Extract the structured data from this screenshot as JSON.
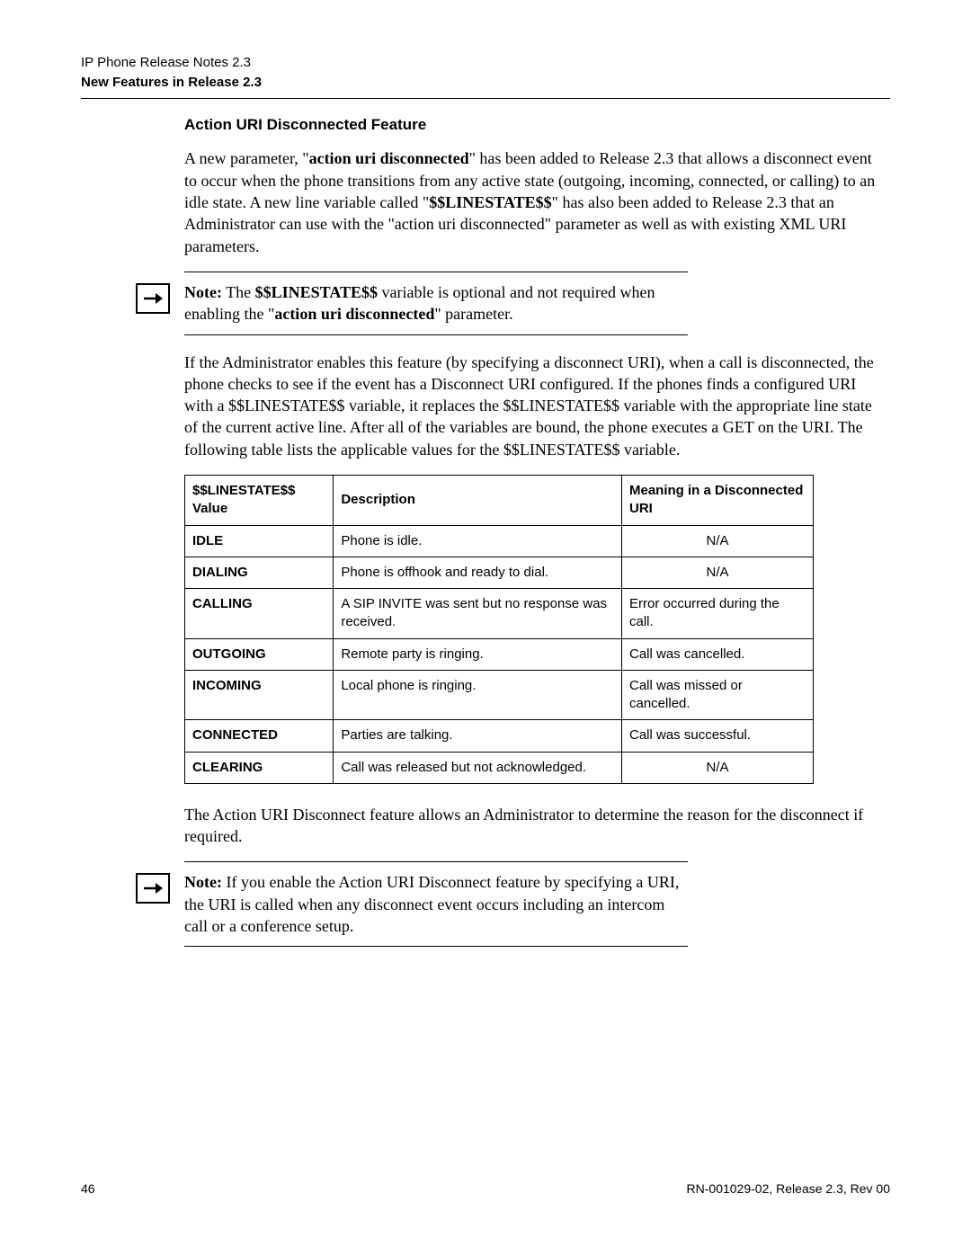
{
  "header": {
    "line1": "IP Phone Release Notes 2.3",
    "line2": "New Features in Release 2.3"
  },
  "section_title": "Action URI Disconnected Feature",
  "para1_pre": "A new parameter, \"",
  "para1_bold1": "action uri disconnected",
  "para1_mid": "\" has been added to Release 2.3 that allows a disconnect event to occur when the phone transitions from any active state (outgoing, incoming, connected, or calling) to an idle state. A new line variable called \"",
  "para1_bold2": "$$LINESTATE$$",
  "para1_post": "\" has also been added to Release 2.3 that an Administrator can use with the \"action uri disconnected\" parameter as well as with existing XML URI parameters.",
  "note1_label": "Note:",
  "note1_a": " The ",
  "note1_bold1": "$$LINESTATE$$",
  "note1_b": " variable is optional and not required when enabling the \"",
  "note1_bold2": "action uri disconnected",
  "note1_c": "\" parameter.",
  "para2": "If the Administrator enables this feature (by specifying a disconnect URI), when a call is disconnected, the phone checks to see if the event has a Disconnect URI configured. If the phones finds a configured URI with a $$LINESTATE$$ variable, it replaces the $$LINESTATE$$ variable with the appropriate line state of the current active line. After all of the variables are bound, the phone executes a GET on the URI. The following table lists the applicable values for the $$LINESTATE$$ variable.",
  "table": {
    "headers": [
      "$$LINESTATE$$ Value",
      "Description",
      "Meaning in a Disconnected URI"
    ],
    "rows": [
      {
        "value": "IDLE",
        "desc": "Phone is idle.",
        "meaning": "N/A",
        "meaning_center": true
      },
      {
        "value": "DIALING",
        "desc": "Phone is offhook and ready to dial.",
        "meaning": "N/A",
        "meaning_center": true
      },
      {
        "value": "CALLING",
        "desc": "A SIP INVITE was sent but no response was received.",
        "meaning": "Error occurred during the call.",
        "meaning_center": false
      },
      {
        "value": "OUTGOING",
        "desc": "Remote party is ringing.",
        "meaning": "Call was cancelled.",
        "meaning_center": false
      },
      {
        "value": "INCOMING",
        "desc": "Local phone is ringing.",
        "meaning": "Call was missed or cancelled.",
        "meaning_center": false
      },
      {
        "value": "CONNECTED",
        "desc": "Parties are talking.",
        "meaning": "Call was successful.",
        "meaning_center": false
      },
      {
        "value": "CLEARING",
        "desc": "Call was released but not acknowledged.",
        "meaning": "N/A",
        "meaning_center": true
      }
    ]
  },
  "para3": "The Action URI Disconnect feature allows an Administrator to determine the reason for the disconnect if required.",
  "note2_label": "Note:",
  "note2_text": " If you enable the Action URI Disconnect feature by specifying a URI, the URI is called when any disconnect event occurs including an intercom call or a conference setup.",
  "footer": {
    "page": "46",
    "right": "RN-001029-02, Release 2.3, Rev 00"
  }
}
